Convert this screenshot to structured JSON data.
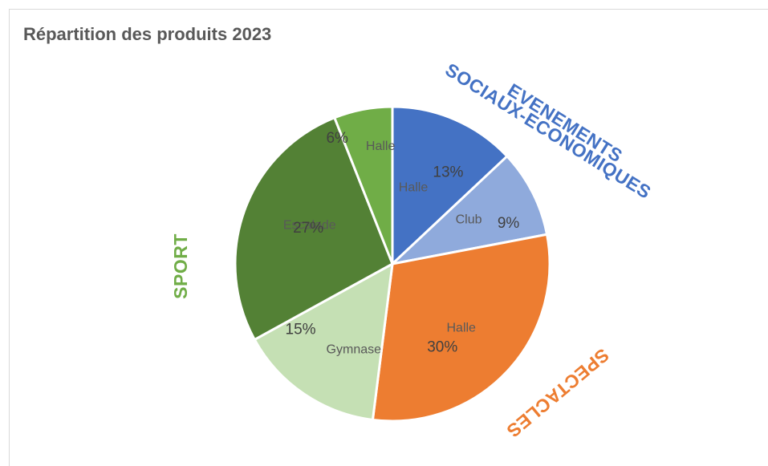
{
  "chart_data": {
    "type": "pie",
    "title": "Répartition des produits 2023",
    "slices": [
      {
        "label": "Halle",
        "value": 13,
        "value_label": "13%",
        "group": "evenements",
        "color": "#4472c4"
      },
      {
        "label": "Club",
        "value": 9,
        "value_label": "9%",
        "group": "evenements",
        "color": "#8faadc"
      },
      {
        "label": "Halle",
        "value": 30,
        "value_label": "30%",
        "group": "spectacles",
        "color": "#ed7d31"
      },
      {
        "label": "Gymnase",
        "value": 15,
        "value_label": "15%",
        "group": "sport",
        "color": "#c5e0b4"
      },
      {
        "label": "Escalade",
        "value": 27,
        "value_label": "27%",
        "group": "sport",
        "color": "#538135"
      },
      {
        "label": "Halle",
        "value": 6,
        "value_label": "6%",
        "group": "sport",
        "color": "#70ad47"
      }
    ],
    "groups": {
      "evenements": {
        "lines": [
          "EVENEMENTS",
          "SOCIAUX-ECONOMIQUES"
        ],
        "color": "#4472c4"
      },
      "spectacles": {
        "lines": [
          "SPECTACLES"
        ],
        "color": "#ed7d31"
      },
      "sport": {
        "lines": [
          "SPORT"
        ],
        "color": "#70ad47"
      }
    }
  }
}
